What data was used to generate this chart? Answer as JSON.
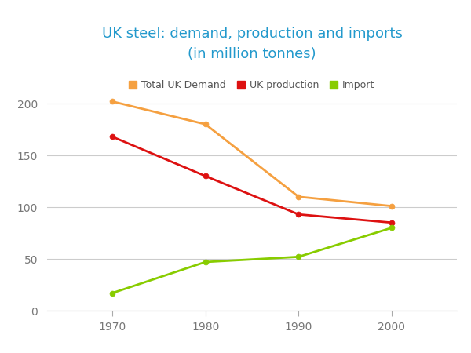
{
  "title_line1": "UK steel: demand, production and imports",
  "title_line2": "(in million tonnes)",
  "title_color": "#2299cc",
  "years": [
    1970,
    1980,
    1990,
    2000
  ],
  "series": {
    "Total UK Demand": {
      "values": [
        202,
        180,
        110,
        101
      ],
      "color": "#f5a040",
      "linewidth": 2.0
    },
    "UK production": {
      "values": [
        168,
        130,
        93,
        85
      ],
      "color": "#dd1111",
      "linewidth": 2.0
    },
    "Import": {
      "values": [
        17,
        47,
        52,
        80
      ],
      "color": "#88cc00",
      "linewidth": 2.0
    }
  },
  "ylim": [
    0,
    225
  ],
  "yticks": [
    0,
    50,
    100,
    150,
    200
  ],
  "background_color": "#ffffff",
  "grid_color": "#cccccc",
  "legend_order": [
    "Total UK Demand",
    "UK production",
    "Import"
  ],
  "marker": "o",
  "markersize": 5
}
